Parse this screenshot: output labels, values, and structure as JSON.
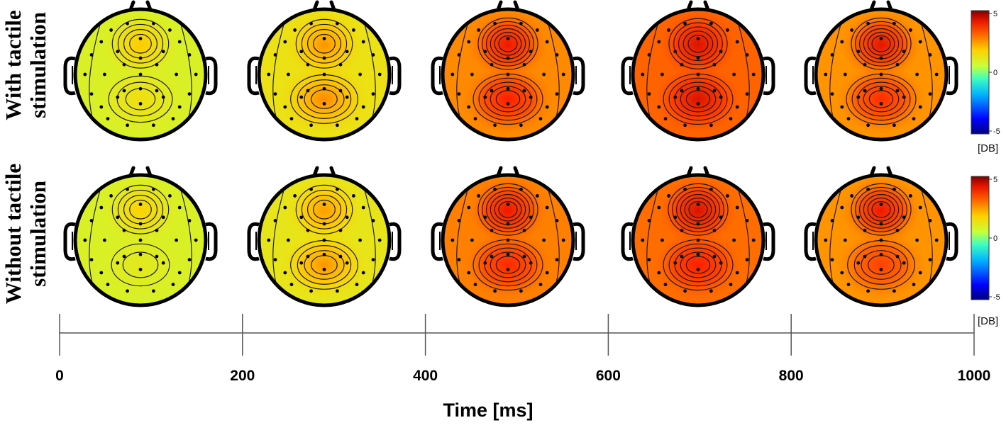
{
  "chart_data": {
    "type": "heatmap",
    "plot_kind": "EEG scalp topographic maps",
    "rows": [
      {
        "label_line1": "With tactile",
        "label_line2": "stimulation",
        "maps": [
          {
            "time_ms": 100,
            "frontal": 1.3,
            "parietal": 0.9,
            "background": 0.4
          },
          {
            "time_ms": 300,
            "frontal": 1.9,
            "parietal": 2.0,
            "background": 0.8
          },
          {
            "time_ms": 500,
            "frontal": 3.9,
            "parietal": 3.7,
            "background": 2.0
          },
          {
            "time_ms": 700,
            "frontal": 4.1,
            "parietal": 4.1,
            "background": 2.4
          },
          {
            "time_ms": 900,
            "frontal": 4.0,
            "parietal": 3.4,
            "background": 1.9
          }
        ]
      },
      {
        "label_line1": "Without tactile",
        "label_line2": "stimulation",
        "maps": [
          {
            "time_ms": 100,
            "frontal": 1.2,
            "parietal": 0.6,
            "background": 0.4
          },
          {
            "time_ms": 300,
            "frontal": 1.8,
            "parietal": 1.9,
            "background": 0.7
          },
          {
            "time_ms": 500,
            "frontal": 3.9,
            "parietal": 3.5,
            "background": 2.1
          },
          {
            "time_ms": 700,
            "frontal": 4.1,
            "parietal": 3.7,
            "background": 2.3
          },
          {
            "time_ms": 900,
            "frontal": 3.9,
            "parietal": 3.0,
            "background": 1.9
          }
        ]
      }
    ],
    "colorbar": {
      "min": -5,
      "max": 5,
      "ticks": [
        "5",
        "0",
        "-5"
      ],
      "unit": "[DB]",
      "colormap": [
        "#00007f",
        "#0000ff",
        "#00b4ff",
        "#40ffbf",
        "#c8ff38",
        "#ffd000",
        "#ff5a00",
        "#ff1a00",
        "#7f0000"
      ]
    },
    "x_axis": {
      "label": "Time [ms]",
      "ticks": [
        0,
        200,
        400,
        600,
        800,
        1000
      ],
      "range": [
        0,
        1000
      ]
    },
    "axis_unit_right": "[DB]"
  }
}
